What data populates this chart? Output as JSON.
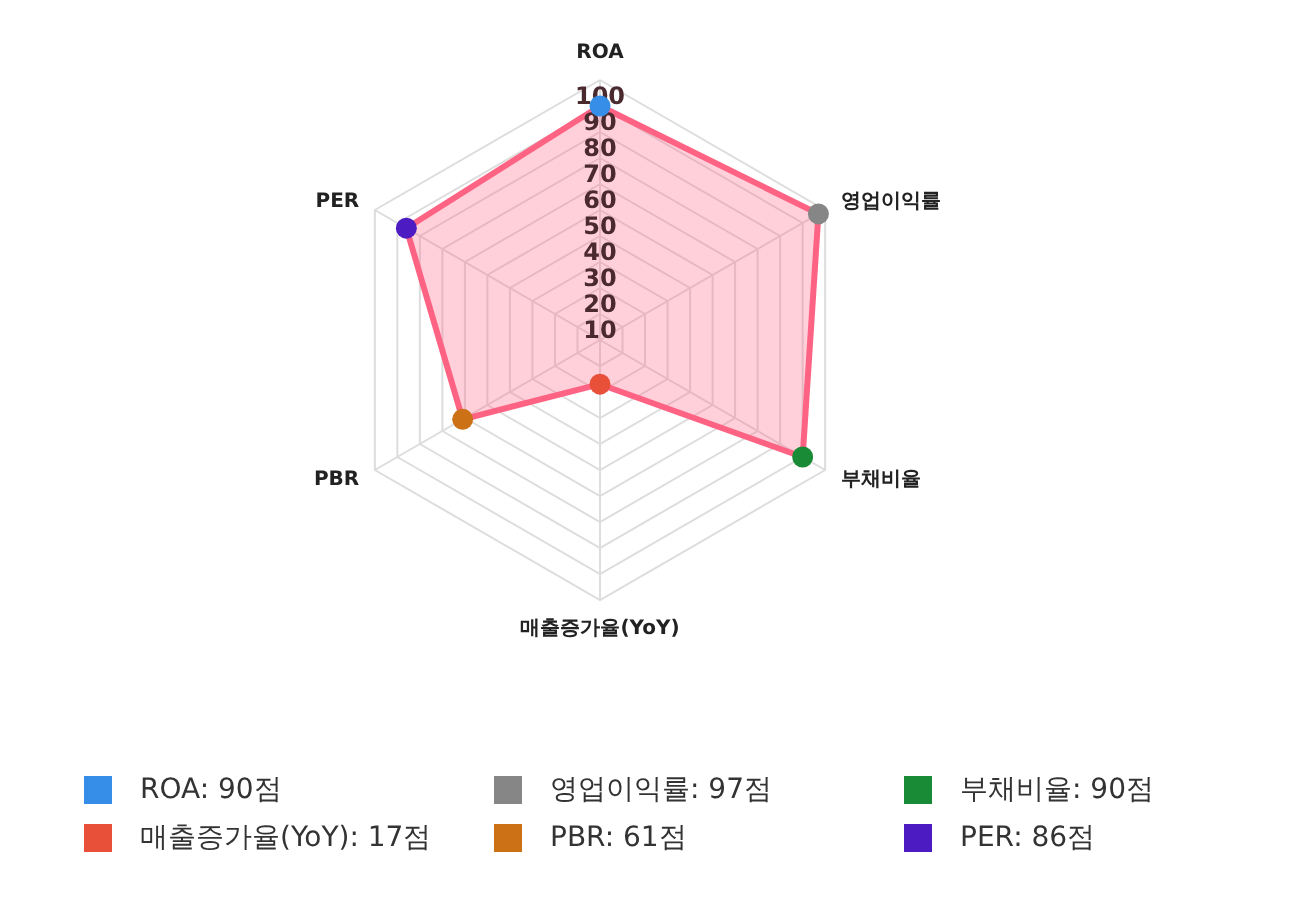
{
  "chart_data": {
    "type": "radar",
    "categories": [
      "ROA",
      "영업이익률",
      "부채비율",
      "매출증가율(YoY)",
      "PBR",
      "PER"
    ],
    "series": [
      {
        "color": "#ff6384",
        "values": [
          90,
          97,
          90,
          17,
          61,
          86
        ],
        "colors": [
          "#368ee8",
          "#868686",
          "#198a35",
          "#e8503a",
          "#cc7115",
          "#4c1cc2"
        ]
      }
    ],
    "annotations": [
      "ROA: 90점",
      "영업이익률: 97점",
      "부채비율: 90점",
      "매출증가율(YoY): 17점",
      "PBR: 61점",
      "PER: 86점"
    ],
    "ylim": [
      0,
      100
    ],
    "yticks": [
      10,
      20,
      30,
      40,
      50,
      60,
      70,
      80,
      90,
      100
    ],
    "grid": true,
    "marker": "circle"
  }
}
